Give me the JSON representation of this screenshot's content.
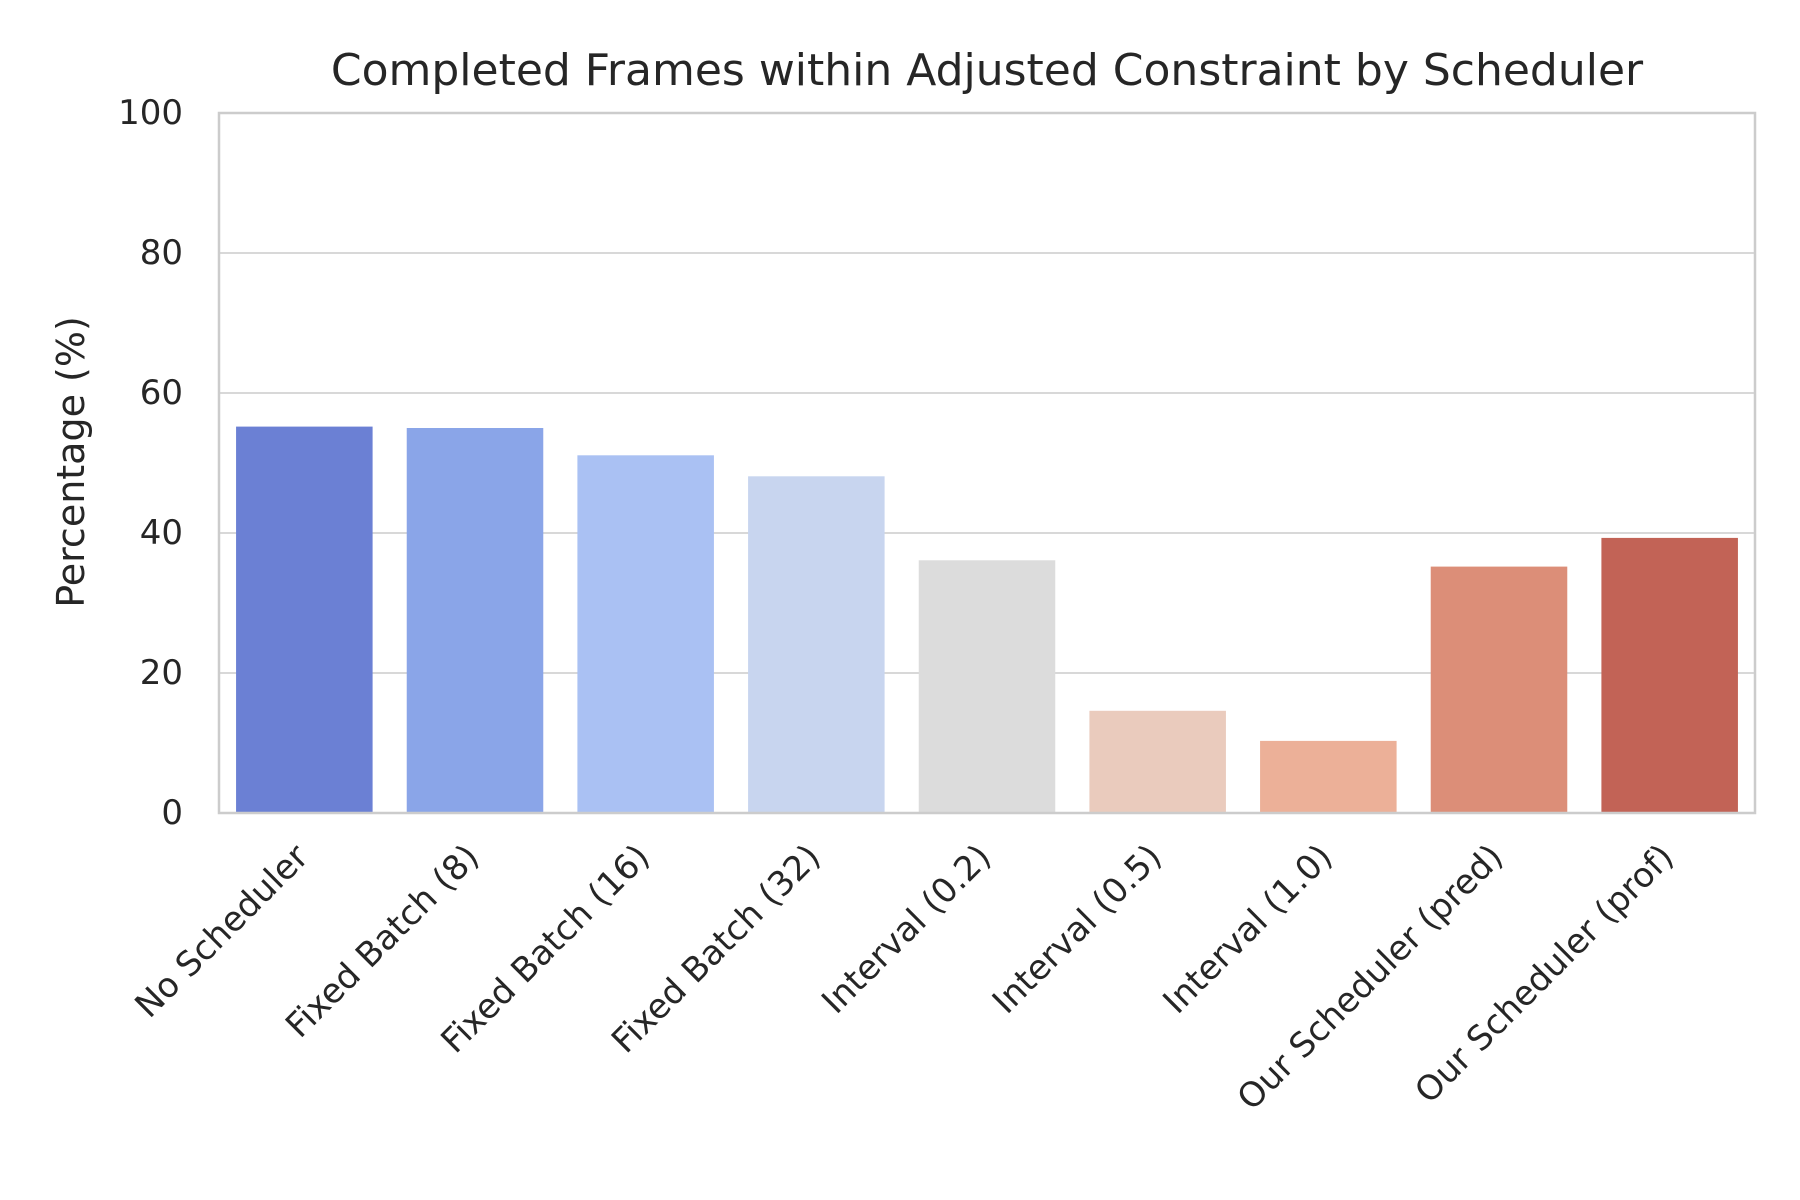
{
  "chart_data": {
    "type": "bar",
    "title": "Completed Frames within Adjusted Constraint by Scheduler",
    "xlabel": "",
    "ylabel": "Percentage (%)",
    "ylim": [
      0,
      100
    ],
    "yticks": [
      0,
      20,
      40,
      60,
      80,
      100
    ],
    "grid": "horizontal",
    "categories": [
      "No Scheduler",
      "Fixed Batch (8)",
      "Fixed Batch (16)",
      "Fixed Batch (32)",
      "Interval (0.2)",
      "Interval (0.5)",
      "Interval (1.0)",
      "Our Scheduler (pred)",
      "Our Scheduler (prof)"
    ],
    "values": [
      55.2,
      55.0,
      51.1,
      48.1,
      36.1,
      14.6,
      10.3,
      35.2,
      39.3
    ],
    "colors": [
      "#6b80d4",
      "#8aa5e8",
      "#aac1f3",
      "#c8d5ef",
      "#dcdcdc",
      "#eacbbd",
      "#ecb098",
      "#dc8e78",
      "#c26356"
    ]
  }
}
